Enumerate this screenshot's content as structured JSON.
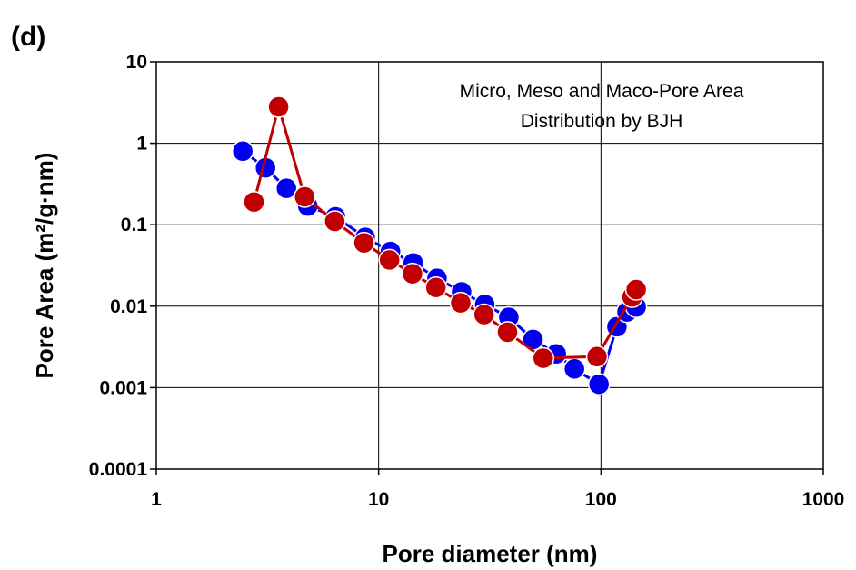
{
  "panel_label": "(d)",
  "chart_data": {
    "type": "scatter",
    "xlabel": "Pore diameter (nm)",
    "ylabel": "Pore Area (m²/g·nm)",
    "xscale": "log",
    "yscale": "log",
    "xlim": [
      1,
      1000
    ],
    "ylim": [
      0.0001,
      10
    ],
    "x_ticks": [
      "1",
      "10",
      "100",
      "1000"
    ],
    "y_ticks": [
      "10",
      "1",
      "0.1",
      "0.01",
      "0.001",
      "0.0001"
    ],
    "grid": true,
    "annotation": [
      "Micro, Meso and Maco-Pore Area",
      "Distribution by BJH"
    ],
    "series": [
      {
        "color": "#0000ee",
        "x": [
          2.45,
          3.1,
          3.85,
          4.8,
          6.4,
          8.7,
          11.3,
          14.3,
          18.3,
          23.6,
          30.0,
          38.5,
          49.5,
          63.0,
          76.0,
          98.0,
          118.0,
          131.0,
          144.0
        ],
        "y": [
          0.8,
          0.5,
          0.28,
          0.17,
          0.125,
          0.07,
          0.047,
          0.034,
          0.022,
          0.015,
          0.0105,
          0.0073,
          0.0039,
          0.0026,
          0.0017,
          0.0011,
          0.0056,
          0.0085,
          0.0098
        ]
      },
      {
        "color": "#c00000",
        "x": [
          2.75,
          3.55,
          4.65,
          6.35,
          8.6,
          11.2,
          14.2,
          18.1,
          23.4,
          29.8,
          38.0,
          55.0,
          96.0,
          138.0,
          144.0
        ],
        "y": [
          0.19,
          2.8,
          0.22,
          0.11,
          0.06,
          0.037,
          0.025,
          0.017,
          0.011,
          0.0079,
          0.0048,
          0.0023,
          0.0024,
          0.013,
          0.016
        ]
      }
    ]
  }
}
